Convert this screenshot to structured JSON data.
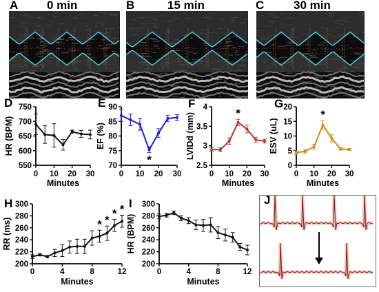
{
  "echo_panels": [
    {
      "letter": "A",
      "title": "0 min"
    },
    {
      "letter": "B",
      "title": "15 min"
    },
    {
      "letter": "C",
      "title": "30 min"
    }
  ],
  "ecg_panel": {
    "letter": "J"
  },
  "colors": {
    "black_series": "#111111",
    "ef_series": "#1f1fd0",
    "lvid_series": "#b5322e",
    "esv_series": "#d28a16",
    "ecg_trace": "#7a2a1a",
    "ecg_glow": "#f4b6b0"
  },
  "chart_data": [
    {
      "id": "D",
      "type": "line",
      "color_key": "black_series",
      "xlabel": "Minutes",
      "ylabel": "HR (BPM)",
      "xlim": [
        0,
        30
      ],
      "ylim": [
        550,
        750
      ],
      "xticks": [
        0,
        10,
        20,
        30
      ],
      "yticks": [
        550,
        600,
        650,
        700,
        750
      ],
      "x": [
        0,
        5,
        10,
        15,
        20,
        25,
        30
      ],
      "y": [
        690,
        655,
        652,
        620,
        665,
        657,
        655
      ],
      "err": [
        35,
        30,
        40,
        18,
        5,
        12,
        15
      ],
      "significant": []
    },
    {
      "id": "E",
      "type": "line",
      "color_key": "ef_series",
      "xlabel": "",
      "ylabel": "EF (%)",
      "xlim": [
        0,
        30
      ],
      "ylim": [
        70,
        90
      ],
      "xticks": [
        0,
        10,
        20,
        30
      ],
      "yticks": [
        70,
        75,
        80,
        85,
        90
      ],
      "x": [
        0,
        5,
        10,
        15,
        20,
        25,
        30
      ],
      "y": [
        87,
        85.5,
        84,
        75.3,
        81,
        86,
        86.3
      ],
      "err": [
        2,
        2,
        2,
        1,
        1.5,
        1,
        1
      ],
      "significant": [
        15
      ]
    },
    {
      "id": "F",
      "type": "line",
      "color_key": "lvid_series",
      "xlabel": "Minutes",
      "ylabel": "LVIDd (mm)",
      "xlim": [
        0,
        30
      ],
      "ylim": [
        2.5,
        4.0
      ],
      "xticks": [
        0,
        10,
        20,
        30
      ],
      "yticks": [
        2.5,
        3.0,
        3.5,
        4.0
      ],
      "x": [
        0,
        5,
        10,
        15,
        20,
        25,
        30
      ],
      "y": [
        2.9,
        2.9,
        3.12,
        3.6,
        3.43,
        3.15,
        3.12
      ],
      "err": [
        0.05,
        0.05,
        0.08,
        0.08,
        0.1,
        0.06,
        0.05
      ],
      "significant": [
        15
      ]
    },
    {
      "id": "G",
      "type": "line",
      "color_key": "esv_series",
      "xlabel": "Minutes",
      "ylabel": "ESV (uL)",
      "xlim": [
        0,
        30
      ],
      "ylim": [
        0,
        20
      ],
      "xticks": [
        0,
        10,
        20,
        30
      ],
      "yticks": [
        0,
        5,
        10,
        15,
        20
      ],
      "x": [
        0,
        5,
        10,
        15,
        20,
        25,
        30
      ],
      "y": [
        4.3,
        4.8,
        6.3,
        13.8,
        9.2,
        5.6,
        5.4
      ],
      "err": [
        0.6,
        0.6,
        0.8,
        1.5,
        1.2,
        0.4,
        0.3
      ],
      "significant": [
        15
      ]
    },
    {
      "id": "H",
      "type": "line",
      "color_key": "black_series",
      "xlabel": "Minutes",
      "ylabel": "RR (ms)",
      "xlim": [
        0,
        12
      ],
      "ylim": [
        200,
        300
      ],
      "xticks": [
        0,
        4,
        8,
        12
      ],
      "yticks": [
        200,
        220,
        240,
        260,
        280,
        300
      ],
      "x": [
        0,
        1,
        2,
        3,
        4,
        5,
        6,
        7,
        8,
        9,
        10,
        11,
        12
      ],
      "y": [
        212,
        215,
        212,
        218,
        222,
        228,
        229,
        229,
        243,
        246,
        251,
        264,
        271
      ],
      "err": [
        3,
        2,
        2,
        6,
        10,
        10,
        12,
        12,
        12,
        10,
        12,
        10,
        10
      ],
      "significant": [
        9,
        10,
        11,
        12
      ]
    },
    {
      "id": "I",
      "type": "line",
      "color_key": "black_series",
      "xlabel": "Minutes",
      "ylabel": "HR (BPM)",
      "xlim": [
        0,
        12
      ],
      "ylim": [
        200,
        300
      ],
      "xticks": [
        0,
        4,
        8,
        12
      ],
      "yticks": [
        200,
        220,
        240,
        260,
        280,
        300
      ],
      "x": [
        0,
        1,
        2,
        3,
        4,
        5,
        6,
        7,
        8,
        9,
        10,
        11,
        12
      ],
      "y": [
        279,
        281,
        285,
        276,
        272,
        265,
        264,
        265,
        252,
        248,
        244,
        228,
        223
      ],
      "err": [
        4,
        3,
        3,
        4,
        5,
        8,
        10,
        12,
        10,
        10,
        8,
        6,
        8
      ],
      "significant": []
    }
  ]
}
